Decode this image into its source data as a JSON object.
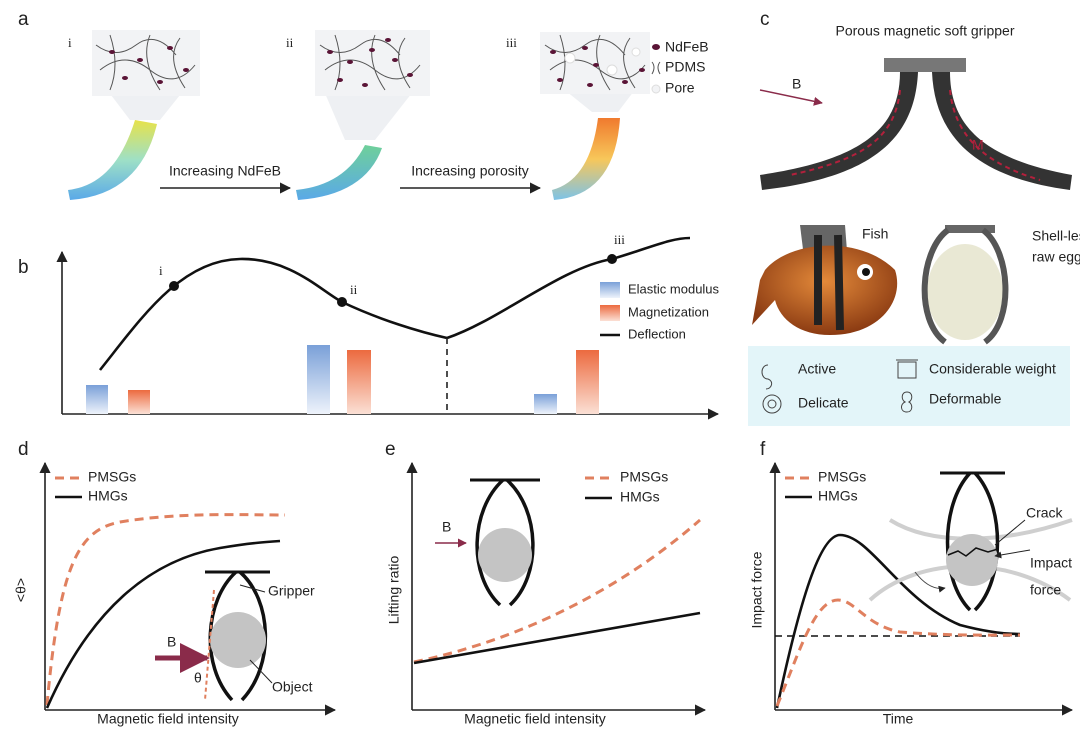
{
  "panels": {
    "a": {
      "label": "a",
      "stages": [
        "i",
        "ii",
        "iii"
      ],
      "legend": [
        "NdFeB",
        "PDMS",
        "Pore"
      ],
      "arrows": [
        "Increasing NdFeB",
        "Increasing porosity"
      ]
    },
    "b": {
      "label": "b",
      "points": [
        "i",
        "ii",
        "iii"
      ],
      "legend": [
        "Elastic modulus",
        "Magnetization",
        "Deflection"
      ]
    },
    "c": {
      "label": "c",
      "title": "Porous magnetic soft gripper",
      "field": "B",
      "magnetization": "M",
      "objects": [
        [
          "Fish"
        ],
        [
          "Shell-less",
          "raw egg"
        ]
      ],
      "features": [
        "Active",
        "Delicate",
        "Considerable weight",
        "Deformable"
      ]
    },
    "d": {
      "label": "d",
      "legend": [
        "PMSGs",
        "HMGs"
      ],
      "y_label": "<θ>",
      "x_label": "Magnetic field intensity",
      "annotations": [
        "Gripper",
        "B",
        "θ",
        "Object"
      ]
    },
    "e": {
      "label": "e",
      "legend": [
        "PMSGs",
        "HMGs"
      ],
      "y_label": "Lifting ratio",
      "x_label": "Magnetic field intensity",
      "annotations": [
        "B"
      ]
    },
    "f": {
      "label": "f",
      "legend": [
        "PMSGs",
        "HMGs"
      ],
      "y_label": "Impact force",
      "x_label": "Time",
      "annotations": [
        [
          "Crack"
        ],
        [
          "Impact",
          "force"
        ]
      ]
    }
  }
}
